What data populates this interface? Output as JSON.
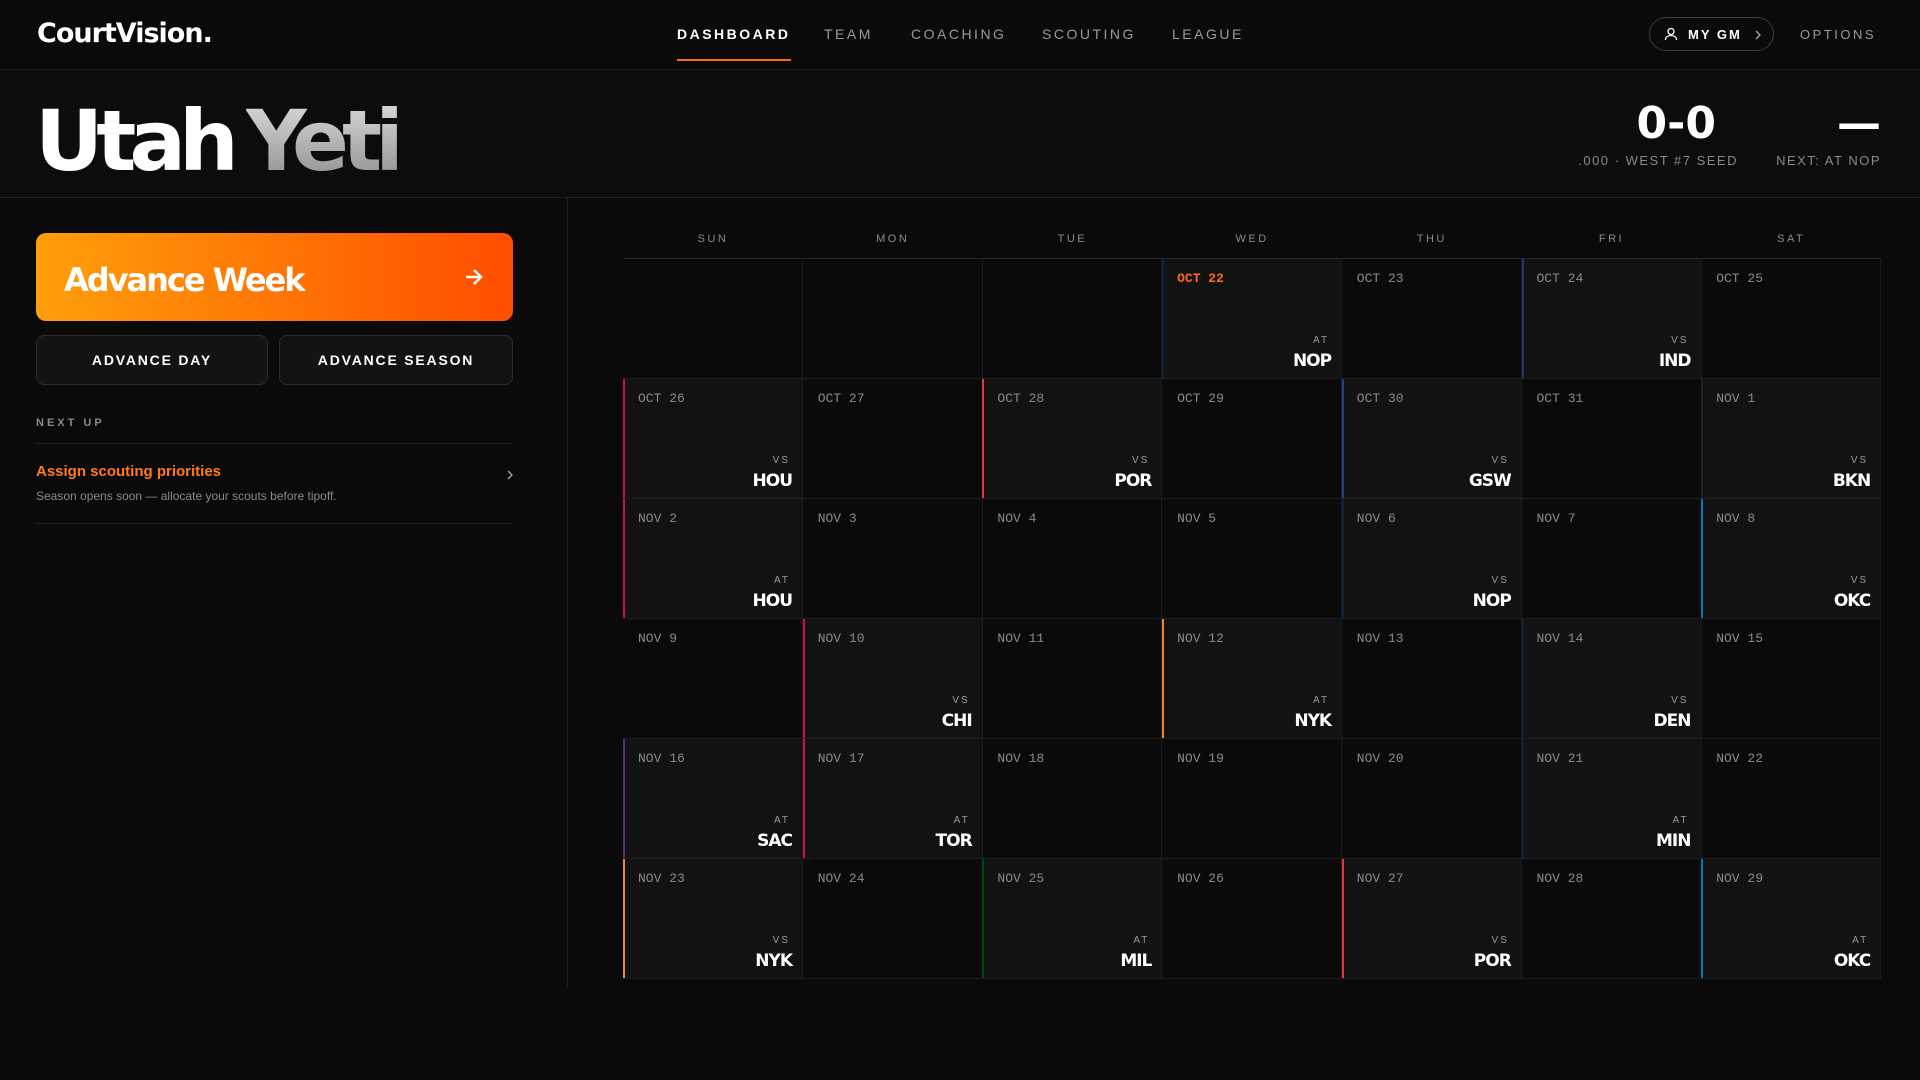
{
  "header": {
    "logo": "CourtVision.",
    "nav": [
      "DASHBOARD",
      "TEAM",
      "COACHING",
      "SCOUTING",
      "LEAGUE"
    ],
    "active_nav": 0,
    "my_gm": "MY GM",
    "options": "OPTIONS"
  },
  "team": {
    "name_first": "Utah",
    "name_second": "Yeti",
    "record": "0-0",
    "record_sub": ".000 · WEST #7 SEED",
    "next_mark": "—",
    "next_sub": "NEXT: AT NOP"
  },
  "sidebar": {
    "advance_week": "Advance Week",
    "advance_day": "ADVANCE DAY",
    "advance_season": "ADVANCE SEASON",
    "next_up_label": "NEXT UP",
    "task_title": "Assign scouting priorities",
    "task_desc": "Season opens soon — allocate your scouts before tipoff."
  },
  "calendar": {
    "weekdays": [
      "SUN",
      "MON",
      "TUE",
      "WED",
      "THU",
      "FRI",
      "SAT"
    ],
    "weeks": [
      [
        null,
        null,
        null,
        {
          "date": "OCT 22",
          "loc": "AT",
          "opp": "NOP",
          "color": "#0c2340",
          "today": true
        },
        {
          "date": "OCT 23"
        },
        {
          "date": "OCT 24",
          "loc": "VS",
          "opp": "IND",
          "color": "#1d3a70"
        },
        {
          "date": "OCT 25"
        }
      ],
      [
        {
          "date": "OCT 26",
          "loc": "VS",
          "opp": "HOU",
          "color": "#ce1141"
        },
        {
          "date": "OCT 27"
        },
        {
          "date": "OCT 28",
          "loc": "VS",
          "opp": "POR",
          "color": "#e03a3e"
        },
        {
          "date": "OCT 29"
        },
        {
          "date": "OCT 30",
          "loc": "VS",
          "opp": "GSW",
          "color": "#1d428a"
        },
        {
          "date": "OCT 31"
        },
        {
          "date": "NOV 1",
          "loc": "VS",
          "opp": "BKN",
          "color": "#222222"
        }
      ],
      [
        {
          "date": "NOV 2",
          "loc": "AT",
          "opp": "HOU",
          "color": "#ce1141"
        },
        {
          "date": "NOV 3"
        },
        {
          "date": "NOV 4"
        },
        {
          "date": "NOV 5"
        },
        {
          "date": "NOV 6",
          "loc": "VS",
          "opp": "NOP",
          "color": "#0c2340"
        },
        {
          "date": "NOV 7"
        },
        {
          "date": "NOV 8",
          "loc": "VS",
          "opp": "OKC",
          "color": "#007ac1"
        }
      ],
      [
        {
          "date": "NOV 9"
        },
        {
          "date": "NOV 10",
          "loc": "VS",
          "opp": "CHI",
          "color": "#ce1141"
        },
        {
          "date": "NOV 11"
        },
        {
          "date": "NOV 12",
          "loc": "AT",
          "opp": "NYK",
          "color": "#f58426"
        },
        {
          "date": "NOV 13"
        },
        {
          "date": "NOV 14",
          "loc": "VS",
          "opp": "DEN",
          "color": "#0e2240"
        },
        {
          "date": "NOV 15"
        }
      ],
      [
        {
          "date": "NOV 16",
          "loc": "AT",
          "opp": "SAC",
          "color": "#5a2d81"
        },
        {
          "date": "NOV 17",
          "loc": "AT",
          "opp": "TOR",
          "color": "#ce1141"
        },
        {
          "date": "NOV 18"
        },
        {
          "date": "NOV 19"
        },
        {
          "date": "NOV 20"
        },
        {
          "date": "NOV 21",
          "loc": "AT",
          "opp": "MIN",
          "color": "#0c2340"
        },
        {
          "date": "NOV 22"
        }
      ],
      [
        {
          "date": "NOV 23",
          "loc": "VS",
          "opp": "NYK",
          "color": "#f58426"
        },
        {
          "date": "NOV 24"
        },
        {
          "date": "NOV 25",
          "loc": "AT",
          "opp": "MIL",
          "color": "#00471b"
        },
        {
          "date": "NOV 26"
        },
        {
          "date": "NOV 27",
          "loc": "VS",
          "opp": "POR",
          "color": "#e03a3e"
        },
        {
          "date": "NOV 28"
        },
        {
          "date": "NOV 29",
          "loc": "AT",
          "opp": "OKC",
          "color": "#007ac1"
        }
      ]
    ]
  }
}
